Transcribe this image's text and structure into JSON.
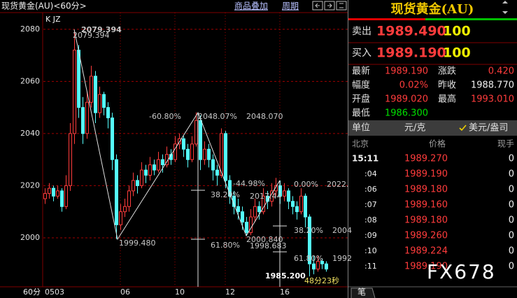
{
  "top_bar": {
    "title": "现货黄金(AU)<60分>",
    "buttons": [
      "商品叠加",
      "周期"
    ]
  },
  "chart_data": {
    "type": "candlestick",
    "indicator": "K JZ",
    "x_unit": "60分",
    "ylim": [
      1981.2,
      2086.4
    ],
    "yticks": [
      2000,
      2020,
      2040,
      2060,
      2080
    ],
    "grid": true,
    "categories": [
      "0503",
      null,
      null,
      null,
      null,
      null,
      null,
      null,
      null,
      null,
      null,
      null,
      null,
      null,
      null,
      null,
      null,
      null,
      "06",
      null,
      null,
      null,
      null,
      null,
      null,
      null,
      null,
      null,
      null,
      null,
      null,
      "10",
      null,
      null,
      null,
      null,
      null,
      null,
      null,
      null,
      null,
      null,
      null,
      "12",
      null,
      null,
      null,
      null,
      null,
      null,
      null,
      null,
      null,
      null,
      null,
      null,
      "16",
      null,
      null,
      null,
      null,
      null,
      null,
      null,
      null,
      null,
      null,
      null
    ],
    "candles": [
      [
        2015,
        2019,
        2013,
        2017
      ],
      [
        2017,
        2021,
        2015,
        2019
      ],
      [
        2019,
        2020,
        2014,
        2016
      ],
      [
        2016,
        2020,
        2015,
        2018
      ],
      [
        2018,
        2019,
        2010,
        2012
      ],
      [
        2012,
        2024,
        2011,
        2020
      ],
      [
        2020,
        2044,
        2018,
        2040
      ],
      [
        2040,
        2079.4,
        2036,
        2072
      ],
      [
        2072,
        2074,
        2046,
        2050
      ],
      [
        2050,
        2054,
        2036,
        2040
      ],
      [
        2040,
        2056,
        2038,
        2052
      ],
      [
        2052,
        2066,
        2050,
        2062
      ],
      [
        2062,
        2064,
        2044,
        2048
      ],
      [
        2048,
        2058,
        2046,
        2055
      ],
      [
        2055,
        2056,
        2047,
        2050
      ],
      [
        2050,
        2052,
        2042,
        2046
      ],
      [
        2046,
        2048,
        2026,
        2030
      ],
      [
        2030,
        2032,
        1999.5,
        2005
      ],
      [
        2005,
        2013,
        2003,
        2010
      ],
      [
        2010,
        2015,
        2008,
        2012
      ],
      [
        2012,
        2020,
        2010,
        2018
      ],
      [
        2018,
        2025,
        2016,
        2022
      ],
      [
        2022,
        2024,
        2017,
        2020
      ],
      [
        2020,
        2029,
        2019,
        2026
      ],
      [
        2026,
        2028,
        2021,
        2024
      ],
      [
        2024,
        2031,
        2022,
        2028
      ],
      [
        2028,
        2030,
        2024,
        2026
      ],
      [
        2026,
        2033,
        2025,
        2030
      ],
      [
        2030,
        2032,
        2025,
        2028
      ],
      [
        2028,
        2035,
        2027,
        2032
      ],
      [
        2032,
        2034,
        2028,
        2030
      ],
      [
        2030,
        2039,
        2029,
        2036
      ],
      [
        2036,
        2040,
        2034,
        2038
      ],
      [
        2038,
        2039,
        2031,
        2034
      ],
      [
        2034,
        2036,
        2027,
        2030
      ],
      [
        2030,
        2039,
        2029,
        2036
      ],
      [
        2036,
        2048.1,
        2035,
        2045
      ],
      [
        2045,
        2047,
        2026,
        2030
      ],
      [
        2030,
        2037,
        2028,
        2034
      ],
      [
        2034,
        2036,
        2027,
        2030
      ],
      [
        2030,
        2032,
        2022,
        2026
      ],
      [
        2026,
        2028,
        2020,
        2024
      ],
      [
        2024,
        2042,
        2023,
        2040
      ],
      [
        2040,
        2041,
        2019,
        2022
      ],
      [
        2022,
        2024,
        2013,
        2016
      ],
      [
        2016,
        2018,
        2009,
        2012
      ],
      [
        2012,
        2015,
        2007,
        2010
      ],
      [
        2010,
        2012,
        2003,
        2006
      ],
      [
        2006,
        2008,
        2000.8,
        2002
      ],
      [
        2002,
        2011,
        2001,
        2008
      ],
      [
        2008,
        2015,
        2006,
        2012
      ],
      [
        2012,
        2014,
        2007,
        2010
      ],
      [
        2010,
        2019,
        2009,
        2016
      ],
      [
        2016,
        2018,
        2011,
        2014
      ],
      [
        2014,
        2021,
        2012,
        2018
      ],
      [
        2018,
        2023,
        2016,
        2020
      ],
      [
        2020,
        2022,
        2013,
        2016
      ],
      [
        2016,
        2021,
        2014,
        2018
      ],
      [
        2018,
        2019,
        2011,
        2014
      ],
      [
        2014,
        2016,
        2009,
        2012
      ],
      [
        2012,
        2014,
        2007,
        2010
      ],
      [
        2010,
        2019,
        2009,
        2016
      ],
      [
        2016,
        2017,
        2004,
        2008
      ],
      [
        2008,
        2009,
        1985.2,
        1990
      ],
      [
        1990,
        1993,
        1986,
        1988
      ],
      [
        1988,
        1993,
        1987,
        1991
      ],
      [
        1991,
        1992,
        1988,
        1990
      ],
      [
        1990,
        1991,
        1987,
        1988
      ]
    ],
    "annotations": [
      "2079.394",
      "2079.394",
      "1999.480",
      "-60.80%",
      "2048.07%",
      "2048.070",
      "38.20%",
      "61.80%",
      "-44.98%",
      "2017.44",
      "0.00%",
      "2022.",
      "2000.840",
      "1998.683",
      "38.20%",
      "2004",
      "61.80%",
      "1992",
      "1985.200",
      "48分23秒"
    ]
  },
  "quote": {
    "title": "现货黄金(AU)",
    "sell": {
      "label": "卖出",
      "price": "1989.490",
      "qty": "100"
    },
    "buy": {
      "label": "买入",
      "price": "1989.190",
      "qty": "100"
    },
    "stats": [
      [
        "最新",
        "1989.190",
        "涨跌",
        "0.420"
      ],
      [
        "幅度",
        "0.02%",
        "昨收",
        "1988.770"
      ],
      [
        "开盘",
        "1989.020",
        "最高",
        "1993.010"
      ],
      [
        "最低",
        "1986.300"
      ]
    ],
    "unit_bar": [
      "单位",
      "元/克",
      "美元/盎司"
    ],
    "columns": [
      "北京",
      "价格",
      "现手"
    ],
    "ticks": [
      [
        "15:11",
        "1989.270",
        "0"
      ],
      [
        ":04",
        "1989.190",
        "0"
      ],
      [
        ":06",
        "1989.180",
        "0"
      ],
      [
        ":07",
        "1989.160",
        "0"
      ],
      [
        ":08",
        "1989.180",
        "0"
      ],
      [
        ":09",
        "1989.260",
        "0"
      ],
      [
        ":10",
        "1989.224",
        "0"
      ],
      [
        ":11",
        "1989.190",
        "0"
      ]
    ],
    "tab": "笔",
    "watermark": "FX678"
  }
}
